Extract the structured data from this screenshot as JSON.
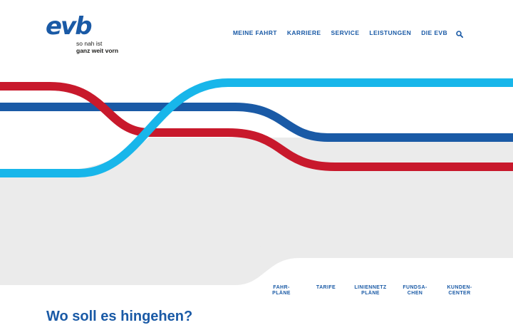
{
  "brand": {
    "logo_text": "evb",
    "tagline_line1": "so nah ist",
    "tagline_line2": "ganz weit vorn",
    "colors": {
      "primary_blue": "#1a5aa6",
      "light_blue": "#18b6ea",
      "red": "#c8192c",
      "grey": "#ebebeb"
    }
  },
  "nav": {
    "items": [
      "MEINE FAHRT",
      "KARRIERE",
      "SERVICE",
      "LEISTUNGEN",
      "DIE EVB"
    ],
    "search_icon": "search-icon"
  },
  "quicklinks": [
    {
      "line1": "FAHR-",
      "line2": "PLÄNE"
    },
    {
      "line1": "TARIFE",
      "line2": ""
    },
    {
      "line1": "LINIENNETZ",
      "line2": "PLÄNE"
    },
    {
      "line1": "FUNDSA-",
      "line2": "CHEN"
    },
    {
      "line1": "KUNDEN-",
      "line2": "CENTER"
    }
  ],
  "main": {
    "question": "Wo soll es hingehen?"
  }
}
